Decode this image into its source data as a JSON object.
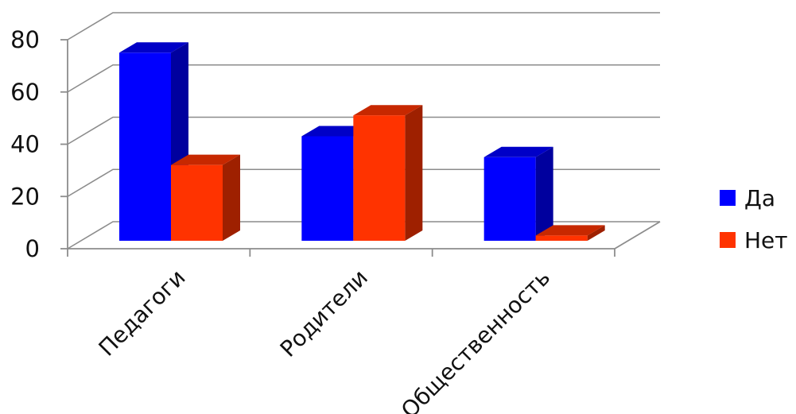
{
  "chart_data": {
    "type": "bar",
    "three_d": true,
    "categories": [
      "Педагоги",
      "Родители",
      "Общественность"
    ],
    "series": [
      {
        "name": "Да",
        "values": [
          72,
          40,
          32
        ],
        "color": "#0000ff"
      },
      {
        "name": "Нет",
        "values": [
          29,
          48,
          2
        ],
        "color": "#ff3300"
      }
    ],
    "ylim": [
      0,
      80
    ],
    "yticks": [
      0,
      20,
      40,
      60,
      80
    ],
    "title": "",
    "xlabel": "",
    "ylabel": "",
    "grid": true,
    "legend_position": "right"
  }
}
